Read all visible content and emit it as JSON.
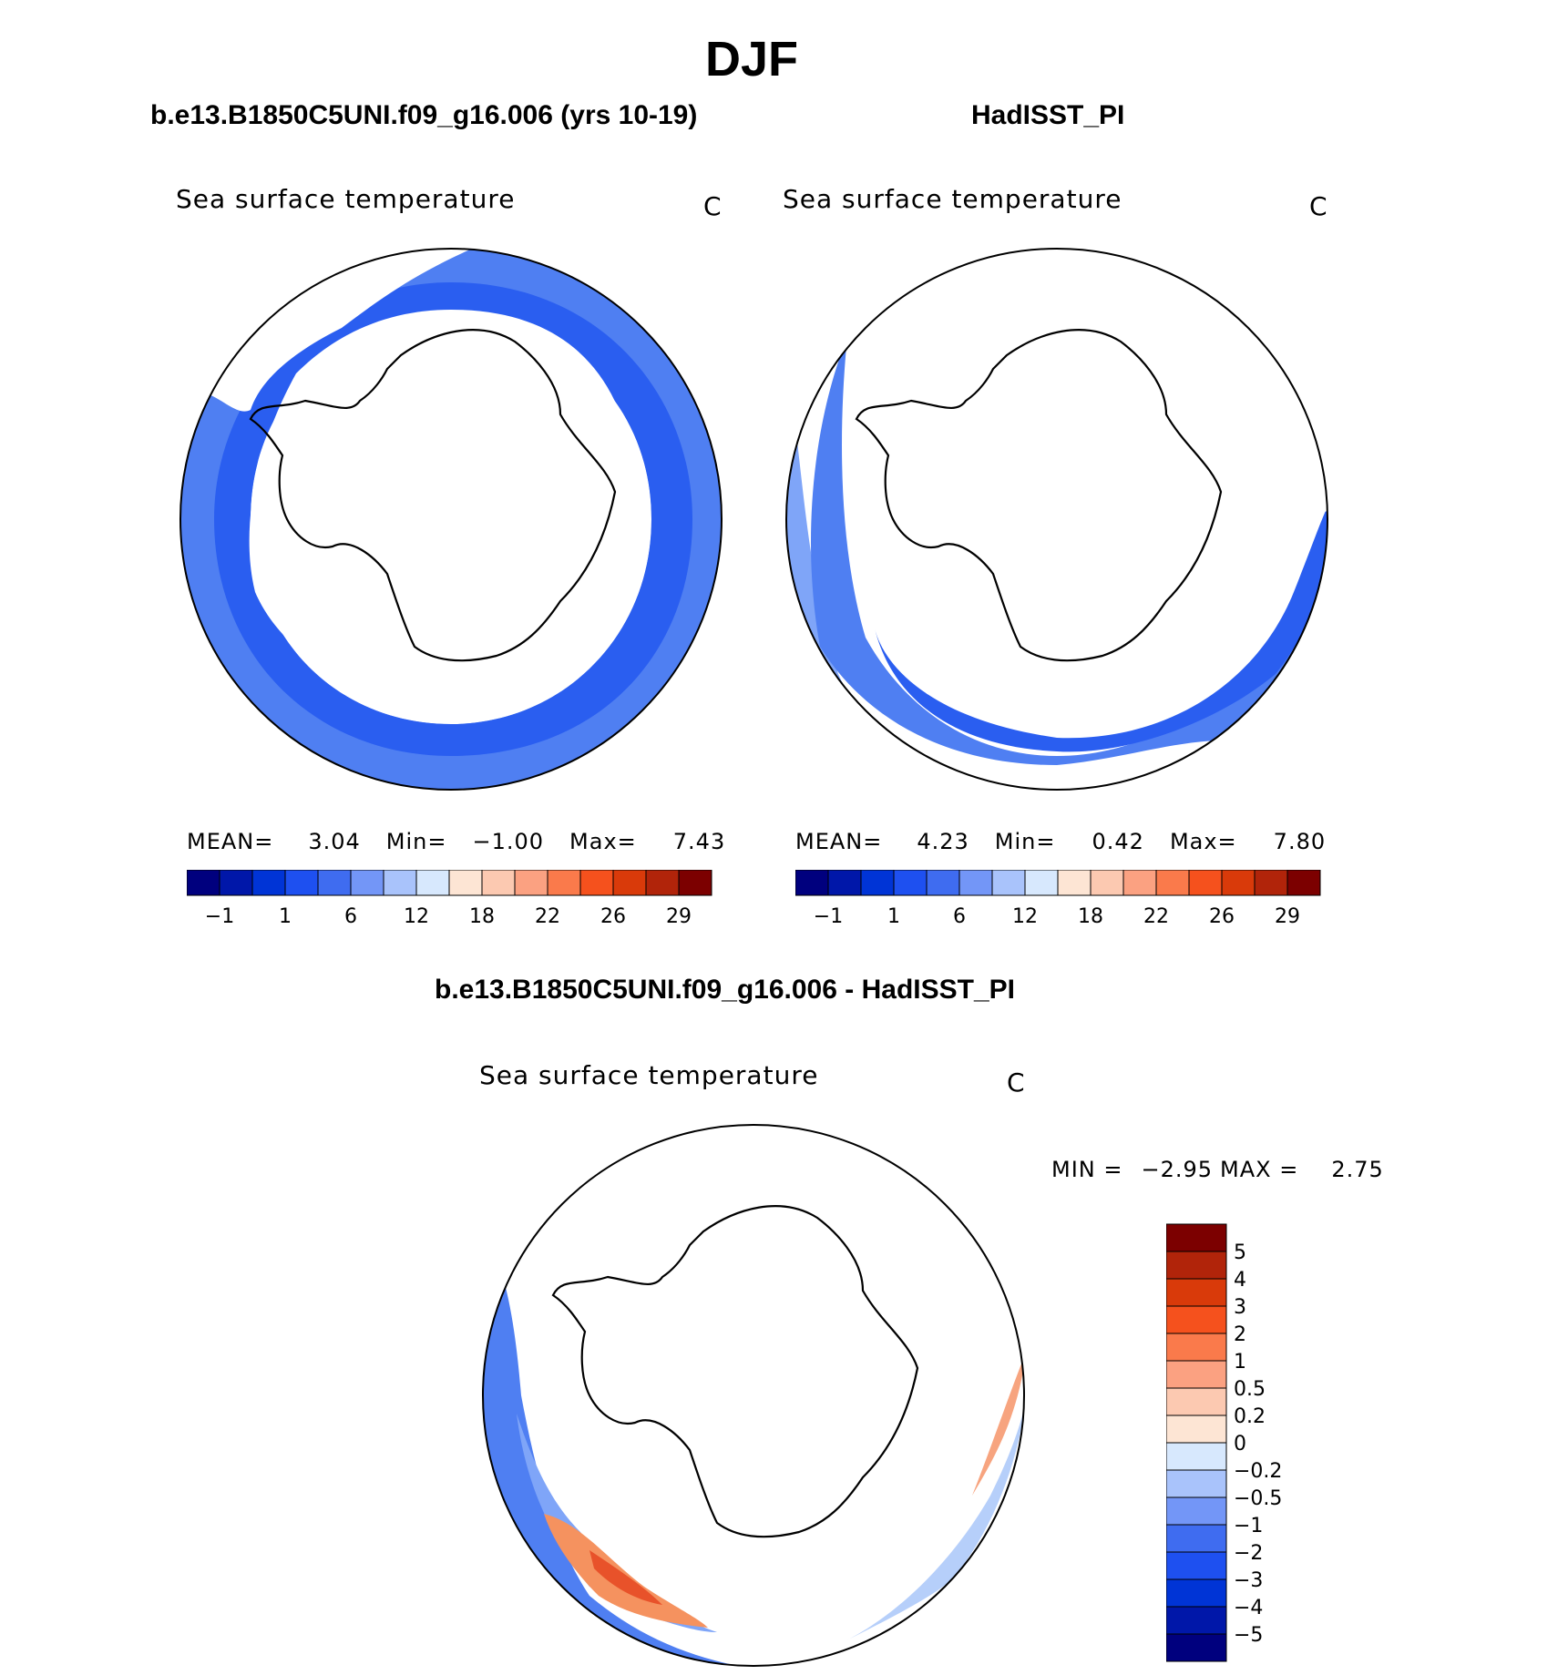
{
  "page_title": "DJF",
  "chart_data": [
    {
      "type": "heatmap",
      "projection": "south-polar-stereographic",
      "title": "b.e13.B1850C5UNI.f09_g16.006 (yrs 10-19)",
      "variable": "Sea surface temperature",
      "units": "C",
      "stats": {
        "mean_label": "MEAN=",
        "mean": "3.04",
        "min_label": "Min=",
        "min": "−1.00",
        "max_label": "Max=",
        "max": "7.43"
      },
      "colorbar": {
        "orientation": "horizontal",
        "levels": [
          "−1",
          "1",
          "6",
          "12",
          "18",
          "22",
          "26",
          "29"
        ],
        "colors": [
          "#00007e",
          "#0017a9",
          "#0034d6",
          "#1e50f0",
          "#3f6cf0",
          "#7396f7",
          "#a9c3fb",
          "#d7e8fd",
          "#fde5d4",
          "#fcc9b1",
          "#fba181",
          "#fa7a4b",
          "#f5511d",
          "#d93a0a",
          "#b1240a",
          "#7c0000"
        ]
      }
    },
    {
      "type": "heatmap",
      "projection": "south-polar-stereographic",
      "title": "HadISST_PI",
      "variable": "Sea surface temperature",
      "units": "C",
      "stats": {
        "mean_label": "MEAN=",
        "mean": "4.23",
        "min_label": "Min=",
        "min": "0.42",
        "max_label": "Max=",
        "max": "7.80"
      },
      "colorbar": {
        "orientation": "horizontal",
        "levels": [
          "−1",
          "1",
          "6",
          "12",
          "18",
          "22",
          "26",
          "29"
        ],
        "colors": [
          "#00007e",
          "#0017a9",
          "#0034d6",
          "#1e50f0",
          "#3f6cf0",
          "#7396f7",
          "#a9c3fb",
          "#d7e8fd",
          "#fde5d4",
          "#fcc9b1",
          "#fba181",
          "#fa7a4b",
          "#f5511d",
          "#d93a0a",
          "#b1240a",
          "#7c0000"
        ]
      }
    },
    {
      "type": "heatmap",
      "projection": "south-polar-stereographic",
      "title": "b.e13.B1850C5UNI.f09_g16.006 - HadISST_PI",
      "variable": "Sea surface temperature",
      "units": "C",
      "stats": {
        "min_label": "MIN =",
        "min": "−2.95",
        "max_label": "MAX =",
        "max": "2.75"
      },
      "colorbar": {
        "orientation": "vertical",
        "levels": [
          "5",
          "4",
          "3",
          "2",
          "1",
          "0.5",
          "0.2",
          "0",
          "−0.2",
          "−0.5",
          "−1",
          "−2",
          "−3",
          "−4",
          "−5"
        ],
        "colors": [
          "#7c0000",
          "#b1240a",
          "#d93a0a",
          "#f5511d",
          "#fa7a4b",
          "#fba181",
          "#fcc9b1",
          "#fde5d4",
          "#d7e8fd",
          "#a9c3fb",
          "#7396f7",
          "#3f6cf0",
          "#1e50f0",
          "#0034d6",
          "#0017a9",
          "#00007e"
        ]
      }
    }
  ]
}
